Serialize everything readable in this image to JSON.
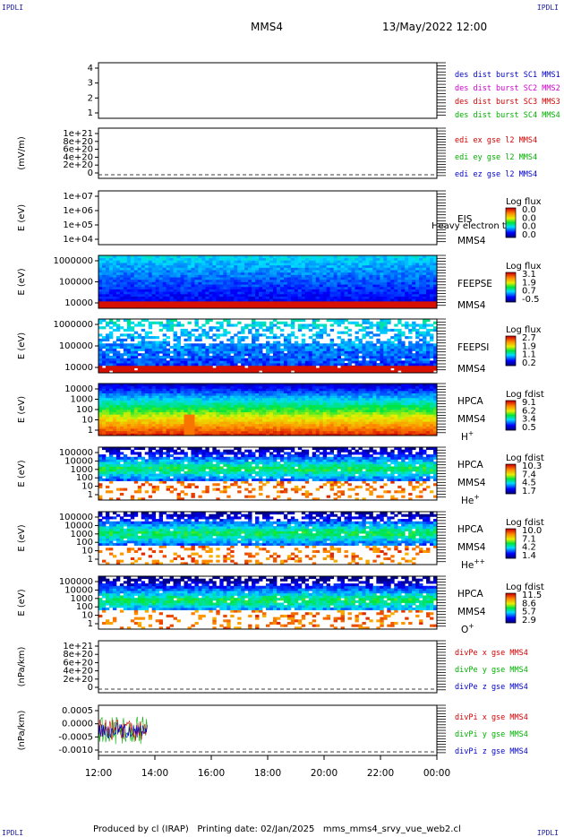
{
  "corners": {
    "tl": "IPDLI",
    "tr": "IPDLI",
    "bl": "IPDLI",
    "br": "IPDLI"
  },
  "header": {
    "spacecraft": "MMS4",
    "datetime": "13/May/2022 12:00"
  },
  "footer": {
    "text": "Produced by cl (IRAP)   Printing date: 02/Jan/2025   mms_mms4_srvy_vue_web2.cl"
  },
  "chart_data": {
    "type": "timeseries-stack",
    "x_ticks": [
      "12:00",
      "14:00",
      "16:00",
      "18:00",
      "20:00",
      "22:00",
      "00:00"
    ],
    "panels": [
      {
        "id": "status",
        "type": "flags",
        "yticks": [
          "4",
          "3",
          "2",
          "1"
        ],
        "legend": [
          {
            "text": "des dist burst SC1 MMS1",
            "color": "#0000c8"
          },
          {
            "text": "des dist burst SC2 MMS2",
            "color": "#d000d0"
          },
          {
            "text": "des dist burst SC3 MMS3",
            "color": "#d00000"
          },
          {
            "text": "des dist burst SC4 MMS4",
            "color": "#00b000"
          }
        ]
      },
      {
        "id": "edi",
        "type": "line",
        "ylabel": "(mV/m)",
        "yticks": [
          "1e+21",
          "8e+20",
          "6e+20",
          "4e+20",
          "2e+20",
          "0"
        ],
        "legend": [
          {
            "text": "edi ex gse l2 MMS4",
            "color": "#d00000"
          },
          {
            "text": "edi ey gse l2 MMS4",
            "color": "#00b000"
          },
          {
            "text": "edi ez gse l2 MMS4",
            "color": "#0000c8"
          }
        ]
      },
      {
        "id": "eis",
        "type": "spectrogram",
        "ylabel": "E (eV)",
        "yticks": [
          "1e+07",
          "1e+06",
          "1e+05",
          "1e+04"
        ],
        "instrument": "EIS",
        "instrument_extra": "Heavy electron to",
        "sc": "MMS4",
        "cbar_title": "Log flux",
        "cbar_ticks": [
          "0.0",
          "0.0",
          "0.0",
          "0.0"
        ],
        "empty": true
      },
      {
        "id": "feepse",
        "type": "spectrogram",
        "ylabel": "E (eV)",
        "yticks": [
          "1000000",
          "100000",
          "10000"
        ],
        "instrument": "FEEPSE",
        "sc": "MMS4",
        "cbar_title": "Log flux",
        "cbar_ticks": [
          "3.1",
          "1.9",
          "0.7",
          "-0.5"
        ]
      },
      {
        "id": "feepsi",
        "type": "spectrogram",
        "ylabel": "E (eV)",
        "yticks": [
          "1000000",
          "100000",
          "10000"
        ],
        "instrument": "FEEPSI",
        "sc": "MMS4",
        "cbar_title": "Log flux",
        "cbar_ticks": [
          "2.7",
          "1.9",
          "1.1",
          "0.2"
        ]
      },
      {
        "id": "hpca_h",
        "type": "spectrogram",
        "ylabel": "E (eV)",
        "yticks": [
          "10000",
          "1000",
          "100",
          "10",
          "1"
        ],
        "instrument": "HPCA",
        "sc": "MMS4",
        "species": "H",
        "species_sup": "+",
        "cbar_title": "Log fdist",
        "cbar_ticks": [
          "9.1",
          "6.2",
          "3.4",
          "0.5"
        ]
      },
      {
        "id": "hpca_he",
        "type": "spectrogram",
        "ylabel": "E (eV)",
        "yticks": [
          "100000",
          "10000",
          "1000",
          "100",
          "10",
          "1"
        ],
        "instrument": "HPCA",
        "sc": "MMS4",
        "species": "He",
        "species_sup": "+",
        "cbar_title": "Log fdist",
        "cbar_ticks": [
          "10.3",
          "7.4",
          "4.5",
          "1.7"
        ]
      },
      {
        "id": "hpca_he2",
        "type": "spectrogram",
        "ylabel": "E (eV)",
        "yticks": [
          "100000",
          "10000",
          "1000",
          "100",
          "10",
          "1"
        ],
        "instrument": "HPCA",
        "sc": "MMS4",
        "species": "He",
        "species_sup": "++",
        "cbar_title": "Log fdist",
        "cbar_ticks": [
          "10.0",
          "7.1",
          "4.2",
          "1.4"
        ]
      },
      {
        "id": "hpca_o",
        "type": "spectrogram",
        "ylabel": "E (eV)",
        "yticks": [
          "100000",
          "10000",
          "1000",
          "100",
          "10",
          "1"
        ],
        "instrument": "HPCA",
        "sc": "MMS4",
        "species": "O",
        "species_sup": "+",
        "cbar_title": "Log fdist",
        "cbar_ticks": [
          "11.5",
          "8.6",
          "5.7",
          "2.9"
        ]
      },
      {
        "id": "divpe",
        "type": "line",
        "ylabel": "(nPa/km)",
        "yticks": [
          "1e+21",
          "8e+20",
          "6e+20",
          "4e+20",
          "2e+20",
          "0"
        ],
        "legend": [
          {
            "text": "divPe x gse MMS4",
            "color": "#d00000"
          },
          {
            "text": "divPe y gse MMS4",
            "color": "#00b000"
          },
          {
            "text": "divPe z gse MMS4",
            "color": "#0000c8"
          }
        ]
      },
      {
        "id": "divpi",
        "type": "line",
        "ylabel": "(nPa/km)",
        "yticks": [
          "0.0005",
          "0.0000",
          "-0.0005",
          "-0.0010"
        ],
        "legend": [
          {
            "text": "divPi x gse MMS4",
            "color": "#d00000"
          },
          {
            "text": "divPi y gse MMS4",
            "color": "#00b000"
          },
          {
            "text": "divPi z gse MMS4",
            "color": "#0000c8"
          }
        ],
        "data_range": [
          "12:00",
          "13:45"
        ]
      }
    ]
  }
}
